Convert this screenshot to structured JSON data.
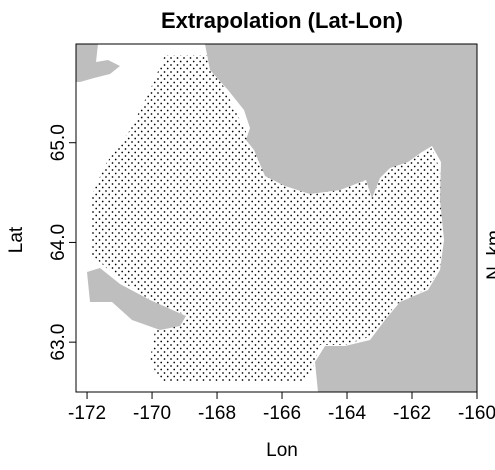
{
  "chart_data": {
    "type": "map",
    "title": "Extrapolation (Lat-Lon)",
    "x_label": "Lon",
    "y_label": "Lat",
    "side_label": "N_km",
    "xlim": [
      -172.34,
      -160
    ],
    "ylim": [
      62.5,
      65.99
    ],
    "xticks": [
      -172,
      -170,
      -168,
      -166,
      -164,
      -162,
      -160
    ],
    "yticks": [
      {
        "value": 63,
        "label": "63.0"
      },
      {
        "value": 64,
        "label": "64.0"
      },
      {
        "value": 65,
        "label": "65.0"
      }
    ],
    "land_color": "#bebebe"
  }
}
